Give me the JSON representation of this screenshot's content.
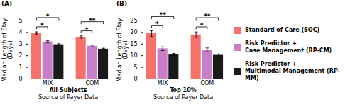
{
  "chart_data": [
    {
      "type": "bar",
      "title": "(A)",
      "subtitle": "All Subjects",
      "xlabel": "Source of Payer Data",
      "ylabel": "Median Length of Stay\n(Days)",
      "categories": [
        "MIX",
        "COM"
      ],
      "series": [
        {
          "name": "Standard of Care (SOC)",
          "color": "#F4726A",
          "values": [
            3.95,
            3.6
          ],
          "errors": [
            0.1,
            0.1
          ]
        },
        {
          "name": "Risk Predictor +\nCase Management (RP-CM)",
          "color": "#C97EC9",
          "values": [
            3.2,
            2.82
          ],
          "errors": [
            0.1,
            0.08
          ]
        },
        {
          "name": "Risk Predictor +\nMultimodal Management (RP-MM)",
          "color": "#1A1A1A",
          "values": [
            2.95,
            2.57
          ],
          "errors": [
            0.08,
            0.07
          ]
        }
      ],
      "ylim": [
        0,
        5
      ],
      "yticks": [
        0,
        1,
        2,
        3,
        4,
        5
      ],
      "grid": false,
      "annotations": [
        {
          "category": "MIX",
          "between": [
            "Standard of Care (SOC)",
            "Risk Predictor +\nCase Management (RP-CM)"
          ],
          "text": "*"
        },
        {
          "category": "MIX",
          "between": [
            "Standard of Care (SOC)",
            "Risk Predictor +\nMultimodal Management (RP-MM)"
          ],
          "text": "*"
        },
        {
          "category": "COM",
          "between": [
            "Standard of Care (SOC)",
            "Risk Predictor +\nCase Management (RP-CM)"
          ],
          "text": "*"
        },
        {
          "category": "COM",
          "between": [
            "Standard of Care (SOC)",
            "Risk Predictor +\nMultimodal Management (RP-MM)"
          ],
          "text": "**"
        }
      ]
    },
    {
      "type": "bar",
      "title": "(B)",
      "subtitle": "Top 10%",
      "xlabel": "Source of Payer Data",
      "ylabel": "Median Length of Stay\n(Days)",
      "categories": [
        "MIX",
        "COM"
      ],
      "series": [
        {
          "name": "Standard of Care (SOC)",
          "color": "#F4726A",
          "values": [
            19.5,
            19.0
          ],
          "errors": [
            1.2,
            1.2
          ]
        },
        {
          "name": "Risk Predictor +\nCase Management (RP-CM)",
          "color": "#C97EC9",
          "values": [
            13.0,
            12.5
          ],
          "errors": [
            0.8,
            0.8
          ]
        },
        {
          "name": "Risk Predictor +\nMultimodal Management (RP-MM)",
          "color": "#1A1A1A",
          "values": [
            10.5,
            10.2
          ],
          "errors": [
            0.5,
            0.5
          ]
        }
      ],
      "ylim": [
        0,
        25
      ],
      "yticks": [
        0,
        5,
        10,
        15,
        20,
        25
      ],
      "grid": false,
      "annotations": [
        {
          "category": "MIX",
          "between": [
            "Standard of Care (SOC)",
            "Risk Predictor +\nCase Management (RP-CM)"
          ],
          "text": "*"
        },
        {
          "category": "MIX",
          "between": [
            "Standard of Care (SOC)",
            "Risk Predictor +\nMultimodal Management (RP-MM)"
          ],
          "text": "**"
        },
        {
          "category": "COM",
          "between": [
            "Standard of Care (SOC)",
            "Risk Predictor +\nCase Management (RP-CM)"
          ],
          "text": "*"
        },
        {
          "category": "COM",
          "between": [
            "Standard of Care (SOC)",
            "Risk Predictor +\nMultimodal Management (RP-MM)"
          ],
          "text": "**"
        }
      ]
    }
  ]
}
